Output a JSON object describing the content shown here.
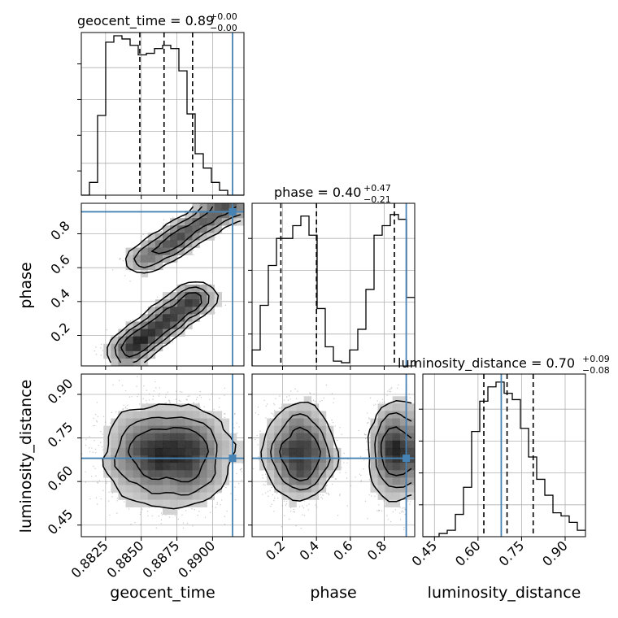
{
  "chart_data": {
    "type": "corner",
    "truth_color": "#4682b4",
    "parameters": [
      {
        "name": "geocent_time",
        "title_name": "geocent_time",
        "title_value": "0.89",
        "title_plus": "+0.00",
        "title_minus": "−0.00",
        "range": [
          0.8808,
          0.8922
        ],
        "ticks": [
          0.8825,
          0.885,
          0.8875,
          0.89
        ],
        "tick_labels": [
          "0.8825",
          "0.8850",
          "0.8875",
          "0.8900"
        ],
        "truth": 0.8914,
        "quantiles": [
          0.8849,
          0.8866,
          0.8886
        ],
        "hist": [
          0.0,
          0.08,
          0.5,
          0.96,
          1.0,
          0.98,
          0.94,
          0.88,
          0.89,
          0.92,
          0.94,
          0.92,
          0.78,
          0.51,
          0.26,
          0.17,
          0.08,
          0.03,
          0.0,
          0.0
        ]
      },
      {
        "name": "phase",
        "title_name": "phase",
        "title_value": "0.40",
        "title_plus": "+0.47",
        "title_minus": "−0.21",
        "range": [
          0.02,
          0.98
        ],
        "ticks": [
          0.2,
          0.4,
          0.6,
          0.8
        ],
        "tick_labels": [
          "0.2",
          "0.4",
          "0.6",
          "0.8"
        ],
        "truth": 0.93,
        "quantiles": [
          0.19,
          0.4,
          0.86
        ],
        "hist": [
          0.1,
          0.38,
          0.63,
          0.8,
          0.8,
          0.88,
          0.94,
          0.82,
          0.36,
          0.12,
          0.03,
          0.02,
          0.1,
          0.23,
          0.48,
          0.82,
          0.88,
          0.95,
          0.92,
          0.43
        ]
      },
      {
        "name": "luminosity_distance",
        "title_name": "luminosity_distance",
        "title_value": "0.70",
        "title_plus": "+0.09",
        "title_minus": "−0.08",
        "range": [
          0.41,
          0.97
        ],
        "ticks": [
          0.45,
          0.6,
          0.75,
          0.9
        ],
        "tick_labels": [
          "0.45",
          "0.60",
          "0.75",
          "0.90"
        ],
        "truth": 0.68,
        "quantiles": [
          0.62,
          0.7,
          0.79
        ],
        "hist": [
          0.0,
          0.0,
          0.02,
          0.04,
          0.14,
          0.31,
          0.66,
          0.85,
          0.94,
          0.97,
          0.9,
          0.86,
          0.68,
          0.5,
          0.36,
          0.26,
          0.15,
          0.13,
          0.09,
          0.04
        ]
      }
    ],
    "pairs": [
      {
        "x": "geocent_time",
        "y": "phase",
        "modes": [
          {
            "x0": 0.8847,
            "y0": 0.62,
            "x1": 0.8914,
            "y1": 0.98,
            "sx": 0.0007,
            "sy": 0.028,
            "w": 0.8,
            "n": 1200
          },
          {
            "x0": 0.8836,
            "y0": 0.08,
            "x1": 0.8893,
            "y1": 0.46,
            "sx": 0.0007,
            "sy": 0.03,
            "w": 1.0,
            "n": 1500
          }
        ]
      },
      {
        "x": "geocent_time",
        "y": "luminosity_distance",
        "modes": [
          {
            "cx": 0.8857,
            "cy": 0.69,
            "sx": 0.0018,
            "sy": 0.085,
            "w": 1.0,
            "n": 1600
          },
          {
            "cx": 0.8885,
            "cy": 0.69,
            "sx": 0.0016,
            "sy": 0.085,
            "w": 0.8,
            "n": 1200
          }
        ]
      },
      {
        "x": "phase",
        "y": "luminosity_distance",
        "modes": [
          {
            "cx": 0.3,
            "cy": 0.7,
            "sx": 0.1,
            "sy": 0.085,
            "w": 1.0,
            "n": 1600
          },
          {
            "cx": 0.87,
            "cy": 0.7,
            "sx": 0.075,
            "sy": 0.085,
            "w": 0.9,
            "n": 1300
          }
        ]
      }
    ]
  }
}
